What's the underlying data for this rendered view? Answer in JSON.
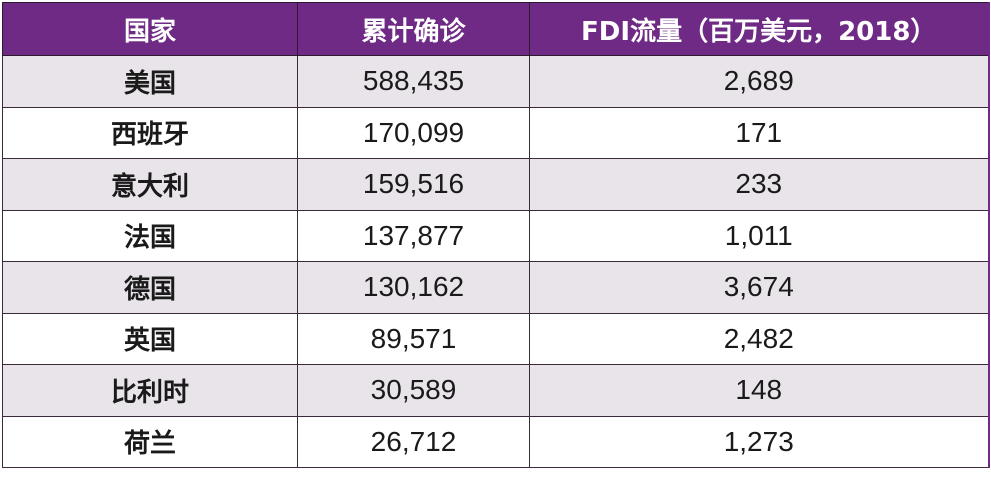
{
  "table": {
    "headers": [
      "国家",
      "累计确诊",
      "FDI流量（百万美元，2018）"
    ],
    "rows": [
      [
        "美国",
        "588,435",
        "2,689"
      ],
      [
        "西班牙",
        "170,099",
        "171"
      ],
      [
        "意大利",
        "159,516",
        "233"
      ],
      [
        "法国",
        "137,877",
        "1,011"
      ],
      [
        "德国",
        "130,162",
        "3,674"
      ],
      [
        "英国",
        "89,571",
        "2,482"
      ],
      [
        "比利时",
        "30,589",
        "148"
      ],
      [
        "荷兰",
        "26,712",
        "1,273"
      ]
    ]
  },
  "colors": {
    "header_bg": "#6e2a84",
    "header_text": "#ffffff",
    "shaded_row": "#e9e4ea",
    "plain_row": "#ffffff"
  }
}
